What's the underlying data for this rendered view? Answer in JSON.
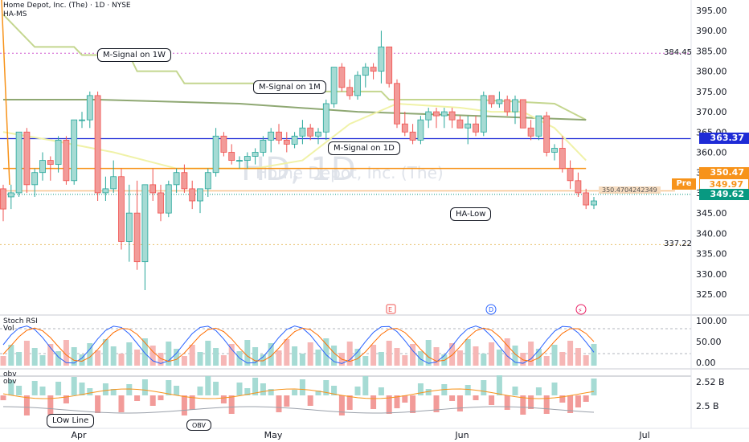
{
  "header": {
    "title": "Home Depot, Inc. (The) · 1D · NYSE",
    "indicator": "HA-MS"
  },
  "watermark": {
    "symbol": "HD, 1D",
    "name": "Home Depot, Inc. (The)"
  },
  "colors": {
    "up": "#26a69a",
    "down": "#ef5350",
    "blue_line": "#1e2bd6",
    "orange": "#f7931a",
    "green_tag": "#089981"
  },
  "chart_data": [
    {
      "type": "candlestick",
      "title": "Home Depot, Inc. (The) · 1D · NYSE",
      "y_ticks": [
        "395.00",
        "390.00",
        "385.00",
        "380.00",
        "375.00",
        "370.00",
        "365.00",
        "360.00",
        "355.00",
        "350.00",
        "345.00",
        "340.00",
        "335.00",
        "330.00",
        "325.00"
      ],
      "ylim": [
        322,
        397
      ],
      "x_ticks": [
        "Apr",
        "May",
        "Jun",
        "Jul"
      ],
      "candles": [
        [
          351,
          352,
          343,
          346
        ],
        [
          349,
          352,
          346,
          350
        ],
        [
          350,
          365,
          349,
          365
        ],
        [
          365,
          366,
          350,
          352
        ],
        [
          352,
          356,
          349,
          355
        ],
        [
          355,
          360,
          353,
          358
        ],
        [
          358,
          359,
          353,
          357
        ],
        [
          357,
          364,
          355,
          363
        ],
        [
          363,
          364,
          352,
          353
        ],
        [
          353,
          368,
          352,
          368
        ],
        [
          368,
          370,
          366,
          368
        ],
        [
          368,
          375,
          366,
          374
        ],
        [
          374,
          375,
          348,
          350
        ],
        [
          350,
          354,
          348,
          351
        ],
        [
          351,
          358,
          350,
          354
        ],
        [
          354,
          356,
          336,
          338
        ],
        [
          338,
          352,
          333,
          345
        ],
        [
          345,
          353,
          331,
          333
        ],
        [
          333,
          352,
          326,
          352
        ],
        [
          352,
          356,
          348,
          350
        ],
        [
          350,
          352,
          343,
          345
        ],
        [
          345,
          353,
          344,
          352
        ],
        [
          352,
          356,
          350,
          355
        ],
        [
          355,
          357,
          350,
          351
        ],
        [
          351,
          353,
          346,
          348
        ],
        [
          348,
          351,
          345,
          351
        ],
        [
          351,
          356,
          349,
          355
        ],
        [
          355,
          366,
          354,
          364
        ],
        [
          364,
          365,
          359,
          360
        ],
        [
          360,
          362,
          357,
          358
        ],
        [
          358,
          359,
          356,
          358
        ],
        [
          358,
          360,
          356,
          359
        ],
        [
          359,
          361,
          357,
          360
        ],
        [
          360,
          364,
          359,
          363
        ],
        [
          363,
          366,
          360,
          365
        ],
        [
          365,
          367,
          362,
          363
        ],
        [
          363,
          365,
          360,
          362
        ],
        [
          362,
          365,
          361,
          364
        ],
        [
          364,
          368,
          362,
          366
        ],
        [
          366,
          367,
          363,
          364
        ],
        [
          364,
          366,
          362,
          365
        ],
        [
          365,
          373,
          363,
          372
        ],
        [
          372,
          381,
          371,
          381
        ],
        [
          381,
          382,
          375,
          376
        ],
        [
          376,
          378,
          373,
          374
        ],
        [
          374,
          380,
          373,
          379
        ],
        [
          379,
          382,
          376,
          381
        ],
        [
          381,
          382,
          378,
          380
        ],
        [
          380,
          390,
          377,
          386
        ],
        [
          386,
          386,
          376,
          377
        ],
        [
          377,
          378,
          366,
          367
        ],
        [
          367,
          370,
          364,
          365
        ],
        [
          365,
          367,
          362,
          363
        ],
        [
          363,
          369,
          362,
          368
        ],
        [
          368,
          371,
          366,
          370
        ],
        [
          370,
          371,
          366,
          369
        ],
        [
          369,
          371,
          366,
          370
        ],
        [
          370,
          371,
          366,
          368
        ],
        [
          368,
          369,
          366,
          366
        ],
        [
          366,
          369,
          362,
          367
        ],
        [
          367,
          369,
          364,
          365
        ],
        [
          365,
          375,
          364,
          374
        ],
        [
          374,
          374,
          371,
          372
        ],
        [
          372,
          375,
          371,
          373
        ],
        [
          373,
          374,
          369,
          370
        ],
        [
          370,
          374,
          367,
          373
        ],
        [
          373,
          373,
          366,
          366
        ],
        [
          366,
          368,
          363,
          364
        ],
        [
          364,
          369,
          363,
          369
        ],
        [
          369,
          370,
          359,
          360
        ],
        [
          360,
          362,
          358,
          361
        ],
        [
          361,
          364,
          355,
          356
        ],
        [
          356,
          358,
          351,
          353
        ],
        [
          353,
          355,
          349,
          350
        ],
        [
          350,
          351,
          346,
          347
        ],
        [
          347,
          349,
          346,
          348
        ]
      ],
      "series": [
        {
          "name": "M-Signal on 1W",
          "color": "#c4d68f",
          "values": [
            [
              0,
              394
            ],
            [
              4,
              386
            ],
            [
              9,
              386
            ],
            [
              10,
              384
            ],
            [
              16,
              384
            ],
            [
              17,
              380
            ],
            [
              22,
              380
            ],
            [
              23,
              377
            ],
            [
              33,
              377
            ],
            [
              34,
              375
            ],
            [
              45,
              375
            ],
            [
              48,
              375
            ],
            [
              49,
              373
            ],
            [
              60,
              373
            ],
            [
              70,
              372
            ],
            [
              74,
              368
            ]
          ]
        },
        {
          "name": "M-Signal on 1M",
          "color": "#8fa873",
          "values": [
            [
              0,
              373
            ],
            [
              12,
              373
            ],
            [
              30,
              372
            ],
            [
              45,
              370
            ],
            [
              60,
              369
            ],
            [
              74,
              368
            ]
          ]
        },
        {
          "name": "M-Signal on 1D",
          "color": "#f0f2a8",
          "values": [
            [
              0,
              365
            ],
            [
              6,
              363
            ],
            [
              14,
              360
            ],
            [
              22,
              356
            ],
            [
              32,
              356
            ],
            [
              38,
              358
            ],
            [
              44,
              367
            ],
            [
              50,
              372
            ],
            [
              58,
              371
            ],
            [
              62,
              370
            ],
            [
              66,
              370
            ],
            [
              70,
              366
            ],
            [
              74,
              358
            ]
          ]
        },
        {
          "name": "orange",
          "color": "#f7931a",
          "values": [
            [
              0,
              356
            ],
            [
              74,
              356
            ]
          ]
        },
        {
          "name": "ha-low",
          "color": "#f7c48f",
          "values": [
            [
              0,
              350.47
            ],
            [
              74,
              350.47
            ]
          ]
        }
      ],
      "levels": [
        {
          "value": 384.45,
          "label": "384.45",
          "style": "dotted-magenta"
        },
        {
          "value": 363.37,
          "label": "363.37",
          "style": "solid-blue"
        },
        {
          "value": 337.22,
          "label": "337.22",
          "style": "dotted-orange"
        },
        {
          "value": 350.4704242349,
          "label": "350.4704242349",
          "style": "solid-orange"
        }
      ],
      "price_tags": [
        {
          "label": "363.37",
          "value": 363.37,
          "color": "#1e2bd6"
        },
        {
          "label": "350.47",
          "value": 350.47,
          "color": "#f7931a"
        },
        {
          "label": "349.97",
          "value": 349.97,
          "color": "#f7931a",
          "prefix": "Pre"
        },
        {
          "label": "349.62",
          "value": 349.62,
          "color": "#089981"
        }
      ],
      "annotations": [
        {
          "text": "M-Signal on 1W"
        },
        {
          "text": "M-Signal on 1M"
        },
        {
          "text": "M-Signal on 1D"
        },
        {
          "text": "HA-Low"
        }
      ]
    },
    {
      "type": "line",
      "title": "Stoch RSI",
      "subtitle": "Vol",
      "y_ticks": [
        "100.00",
        "50.00",
        "0.00"
      ],
      "ylim": [
        -5,
        110
      ],
      "event_markers": [
        "E",
        "D",
        "⚡"
      ]
    },
    {
      "type": "line",
      "title": "obv",
      "subtitle": "obv",
      "y_ticks": [
        "2.52 B",
        "2.5 B"
      ],
      "annotations": [
        {
          "text": "LOw Line"
        },
        {
          "text": "OBV"
        }
      ]
    }
  ]
}
